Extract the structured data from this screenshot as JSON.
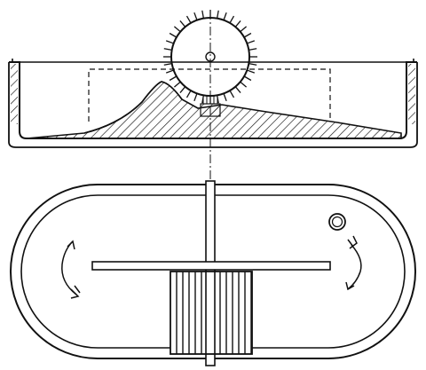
{
  "figure": {
    "views": [
      "section-view",
      "plan-view"
    ],
    "ink_color": "#111111",
    "paper_color": "#ffffff"
  }
}
